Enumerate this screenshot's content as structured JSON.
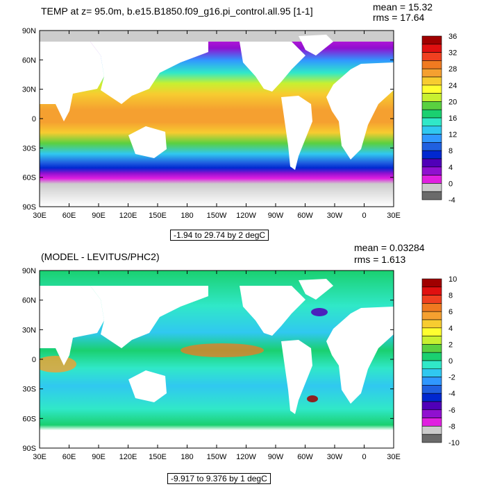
{
  "chart_data": [
    {
      "type": "heatmap",
      "title": "TEMP at z=  95.0m, b.e15.B1850.f09_g16.pi_control.all.95 [1-1]",
      "stats": {
        "mean": "mean = 15.32",
        "rms": "rms = 17.64"
      },
      "subtitle": "-1.94 to 29.74 by 2 degC",
      "x_ticks": [
        "30E",
        "60E",
        "90E",
        "120E",
        "150E",
        "180",
        "150W",
        "120W",
        "90W",
        "60W",
        "30W",
        "0",
        "30E"
      ],
      "y_ticks": [
        "90N",
        "60N",
        "30N",
        "0",
        "30S",
        "60S",
        "90S"
      ],
      "colorbar": {
        "labels": [
          "36",
          "32",
          "28",
          "24",
          "20",
          "16",
          "12",
          "8",
          "4",
          "0",
          "-4"
        ],
        "colors": [
          "#a00000",
          "#e01010",
          "#f04020",
          "#f07a20",
          "#f5a030",
          "#f7cc30",
          "#ffff30",
          "#c8f030",
          "#5ad040",
          "#1ad070",
          "#30e8c8",
          "#30c8f0",
          "#3098ff",
          "#2060e0",
          "#0028d0",
          "#5000b8",
          "#9010d0",
          "#e020e0",
          "#cccccc",
          "#6a6a6a"
        ]
      }
    },
    {
      "type": "heatmap",
      "title": "(MODEL - LEVITUS/PHC2)",
      "stats": {
        "mean": "mean = 0.03284",
        "rms": "rms = 1.613"
      },
      "subtitle": "-9.917 to 9.376 by 1 degC",
      "x_ticks": [
        "30E",
        "60E",
        "90E",
        "120E",
        "150E",
        "180",
        "150W",
        "120W",
        "90W",
        "60W",
        "30W",
        "0",
        "30E"
      ],
      "y_ticks": [
        "90N",
        "60N",
        "30N",
        "0",
        "30S",
        "60S",
        "90S"
      ],
      "colorbar": {
        "labels": [
          "10",
          "8",
          "6",
          "4",
          "2",
          "0",
          "-2",
          "-4",
          "-6",
          "-8",
          "-10"
        ],
        "colors": [
          "#a00000",
          "#e01010",
          "#f04020",
          "#f07a20",
          "#f5a030",
          "#f7cc30",
          "#ffff30",
          "#c8f030",
          "#5ad040",
          "#1ad070",
          "#30e8c8",
          "#30c8f0",
          "#3098ff",
          "#2060e0",
          "#0028d0",
          "#5000b8",
          "#9010d0",
          "#e020e0",
          "#cccccc",
          "#6a6a6a"
        ]
      }
    }
  ]
}
